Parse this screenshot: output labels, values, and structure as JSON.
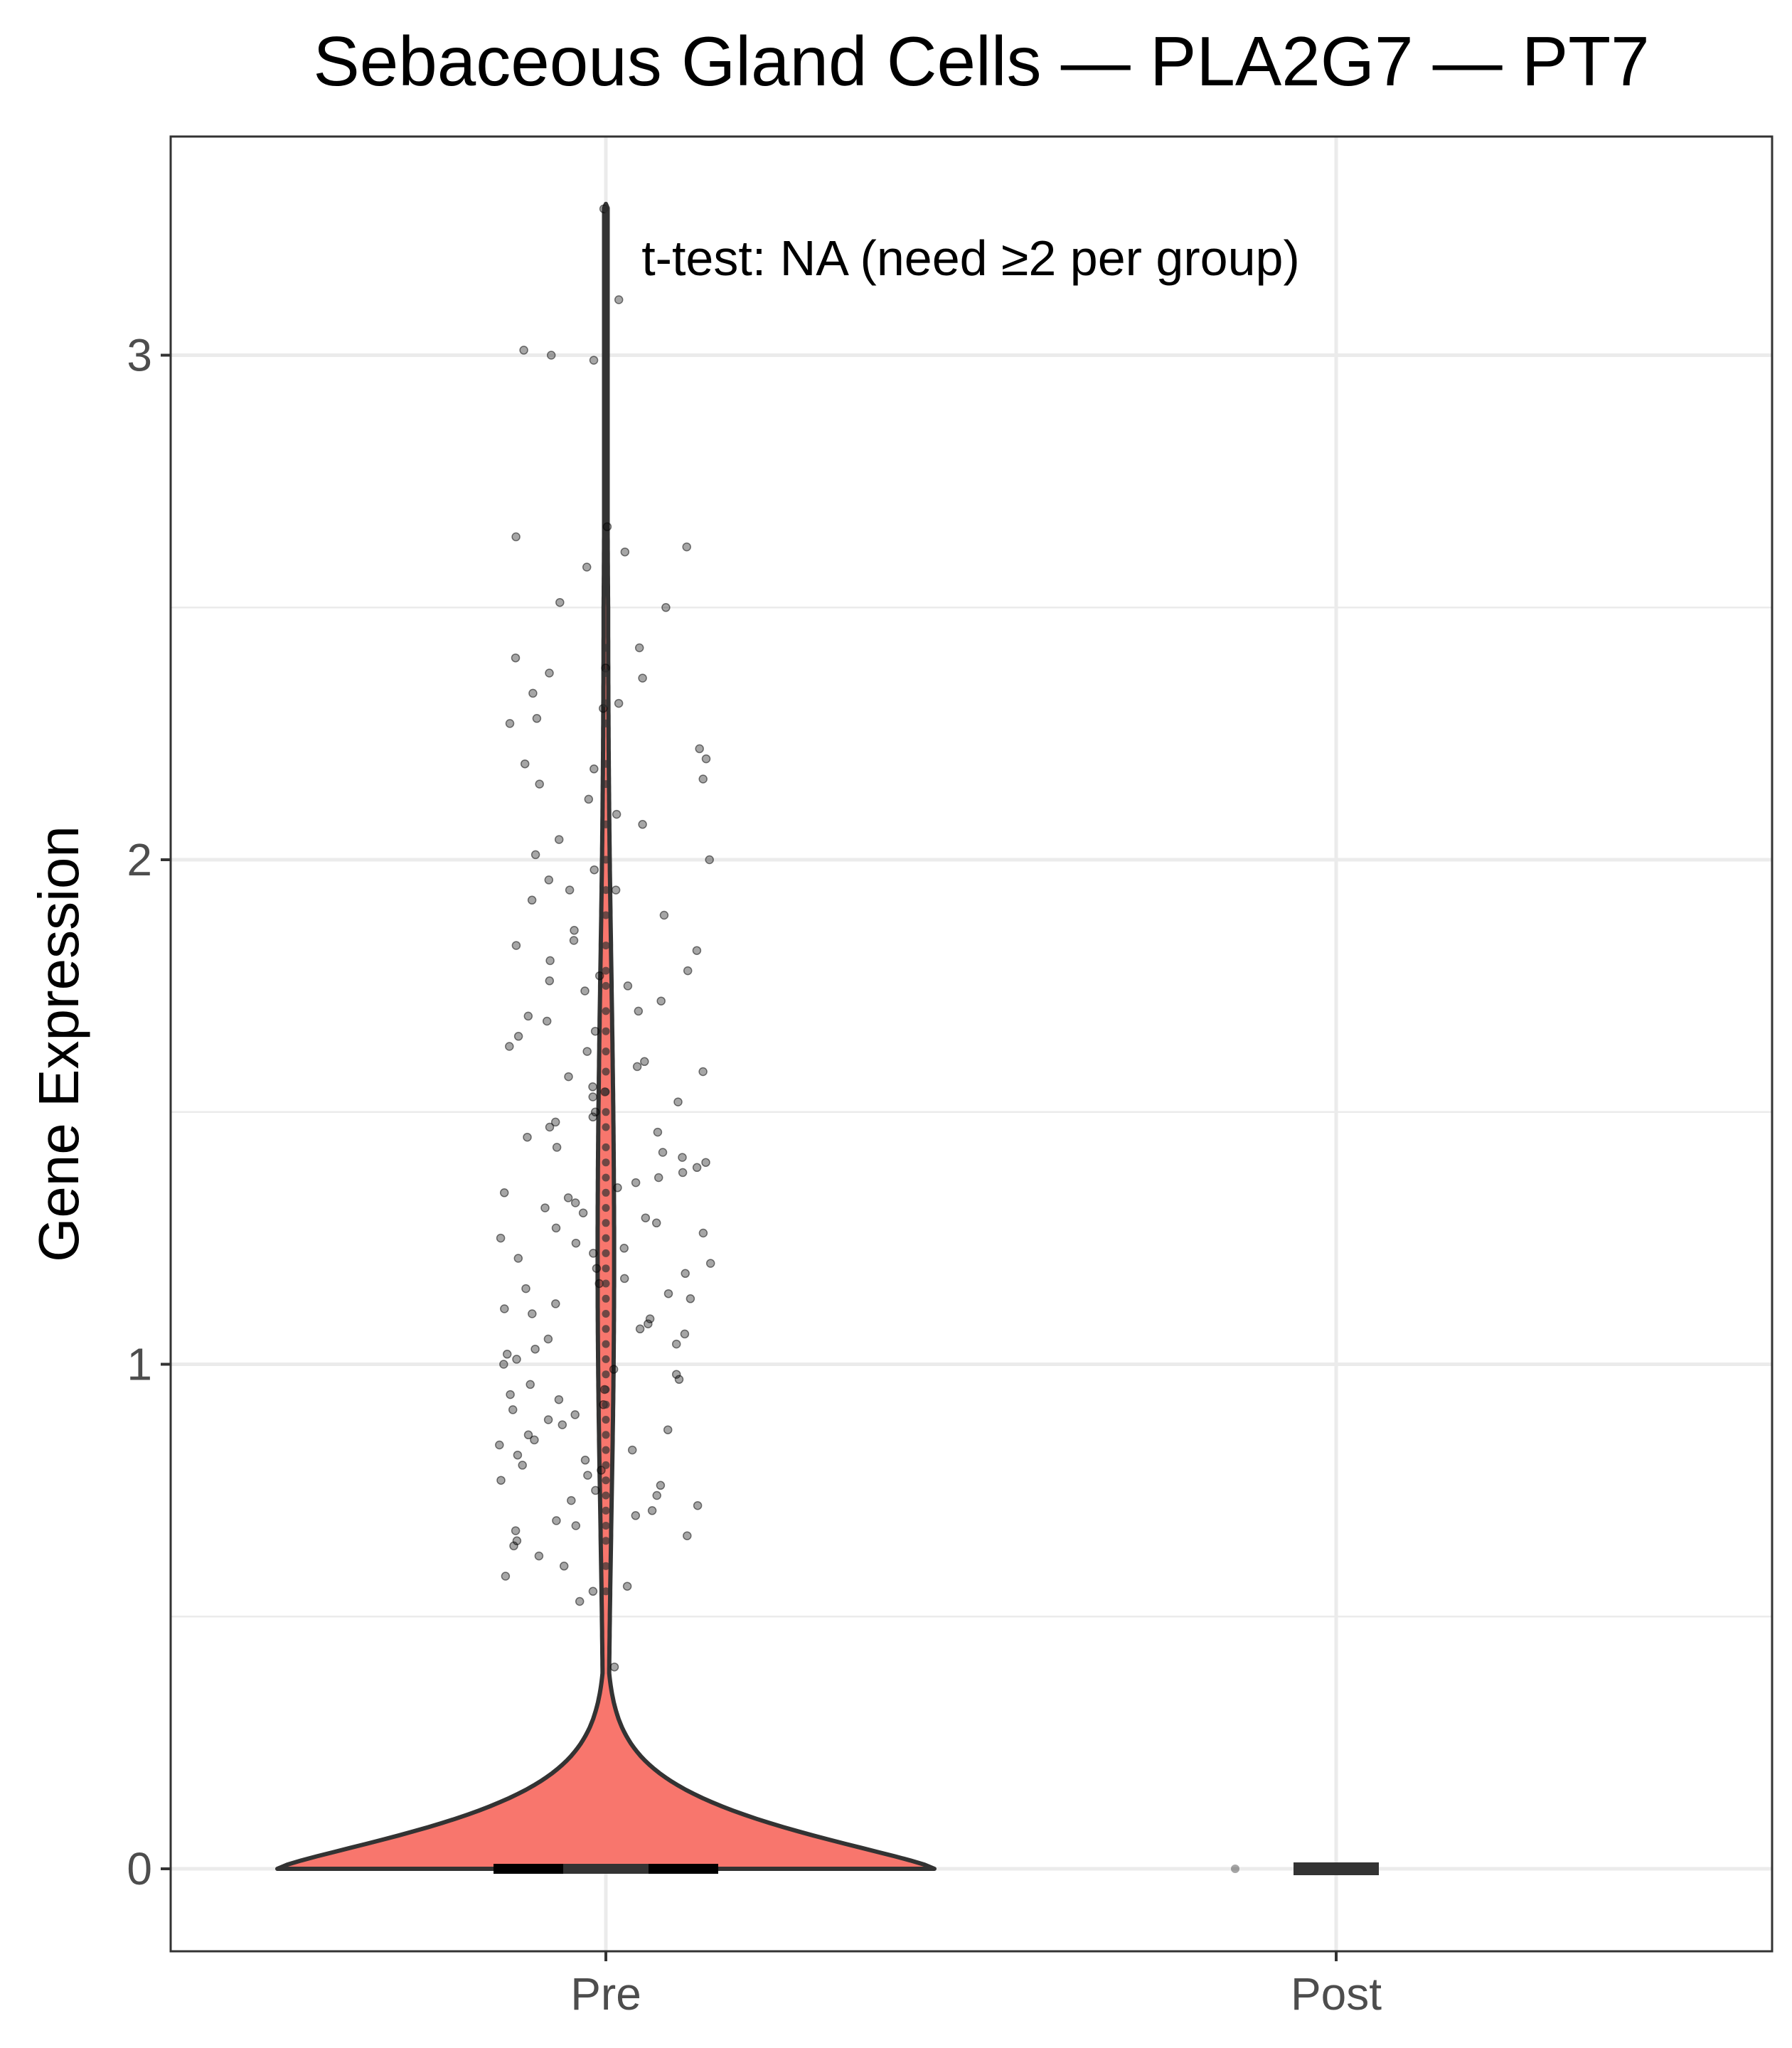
{
  "chart_data": {
    "type": "violin",
    "title": "Sebaceous Gland Cells — PLA2G7 — PT7",
    "xlabel": "",
    "ylabel": "Gene Expression",
    "categories": [
      "Pre",
      "Post"
    ],
    "ylim": [
      -0.16,
      3.4
    ],
    "yticks": [
      0,
      1,
      2,
      3
    ],
    "ytick_labels": [
      "0",
      "1",
      "2",
      "3"
    ],
    "grid": true,
    "annotation": "t-test: NA (need ≥2 per group)",
    "colors": {
      "violin_fill": "#F8766D",
      "outline": "#333333",
      "points": "#000000",
      "grid": "#ebebeb"
    },
    "series": [
      {
        "category": "Pre",
        "n_zero_cells": "many",
        "median": 0,
        "max": 3.3,
        "nonzero_values": [
          3.29,
          3.11,
          3.01,
          3.0,
          2.99,
          2.66,
          2.64,
          2.62,
          2.61,
          2.58,
          2.51,
          2.5,
          2.42,
          2.4,
          2.38,
          2.37,
          2.36,
          2.33,
          2.31,
          2.3,
          2.28,
          2.27,
          2.22,
          2.2,
          2.19,
          2.18,
          2.16,
          2.15,
          2.12,
          2.09,
          2.07,
          2.04,
          2.01,
          2.0,
          1.98,
          1.96,
          1.94,
          1.94,
          1.92,
          1.89,
          1.86,
          1.84,
          1.83,
          1.82,
          1.8,
          1.78,
          1.77,
          1.76,
          1.75,
          1.74,
          1.72,
          1.7,
          1.69,
          1.68,
          1.66,
          1.65,
          1.63,
          1.62,
          1.6,
          1.59,
          1.58,
          1.57,
          1.55,
          1.54,
          1.53,
          1.52,
          1.5,
          1.49,
          1.48,
          1.47,
          1.46,
          1.45,
          1.43,
          1.42,
          1.41,
          1.4,
          1.39,
          1.38,
          1.37,
          1.36,
          1.35,
          1.34,
          1.33,
          1.32,
          1.31,
          1.3,
          1.29,
          1.28,
          1.27,
          1.26,
          1.25,
          1.24,
          1.23,
          1.22,
          1.21,
          1.2,
          1.19,
          1.18,
          1.17,
          1.16,
          1.15,
          1.14,
          1.13,
          1.12,
          1.11,
          1.1,
          1.09,
          1.08,
          1.07,
          1.06,
          1.05,
          1.04,
          1.03,
          1.02,
          1.01,
          1.0,
          0.99,
          0.98,
          0.97,
          0.96,
          0.95,
          0.94,
          0.93,
          0.92,
          0.91,
          0.9,
          0.89,
          0.88,
          0.87,
          0.86,
          0.85,
          0.84,
          0.83,
          0.82,
          0.81,
          0.8,
          0.79,
          0.78,
          0.77,
          0.76,
          0.75,
          0.74,
          0.73,
          0.72,
          0.71,
          0.7,
          0.69,
          0.68,
          0.67,
          0.66,
          0.65,
          0.64,
          0.62,
          0.6,
          0.58,
          0.56,
          0.55,
          0.53,
          0.4
        ]
      },
      {
        "category": "Post",
        "values": [
          0
        ]
      }
    ]
  }
}
